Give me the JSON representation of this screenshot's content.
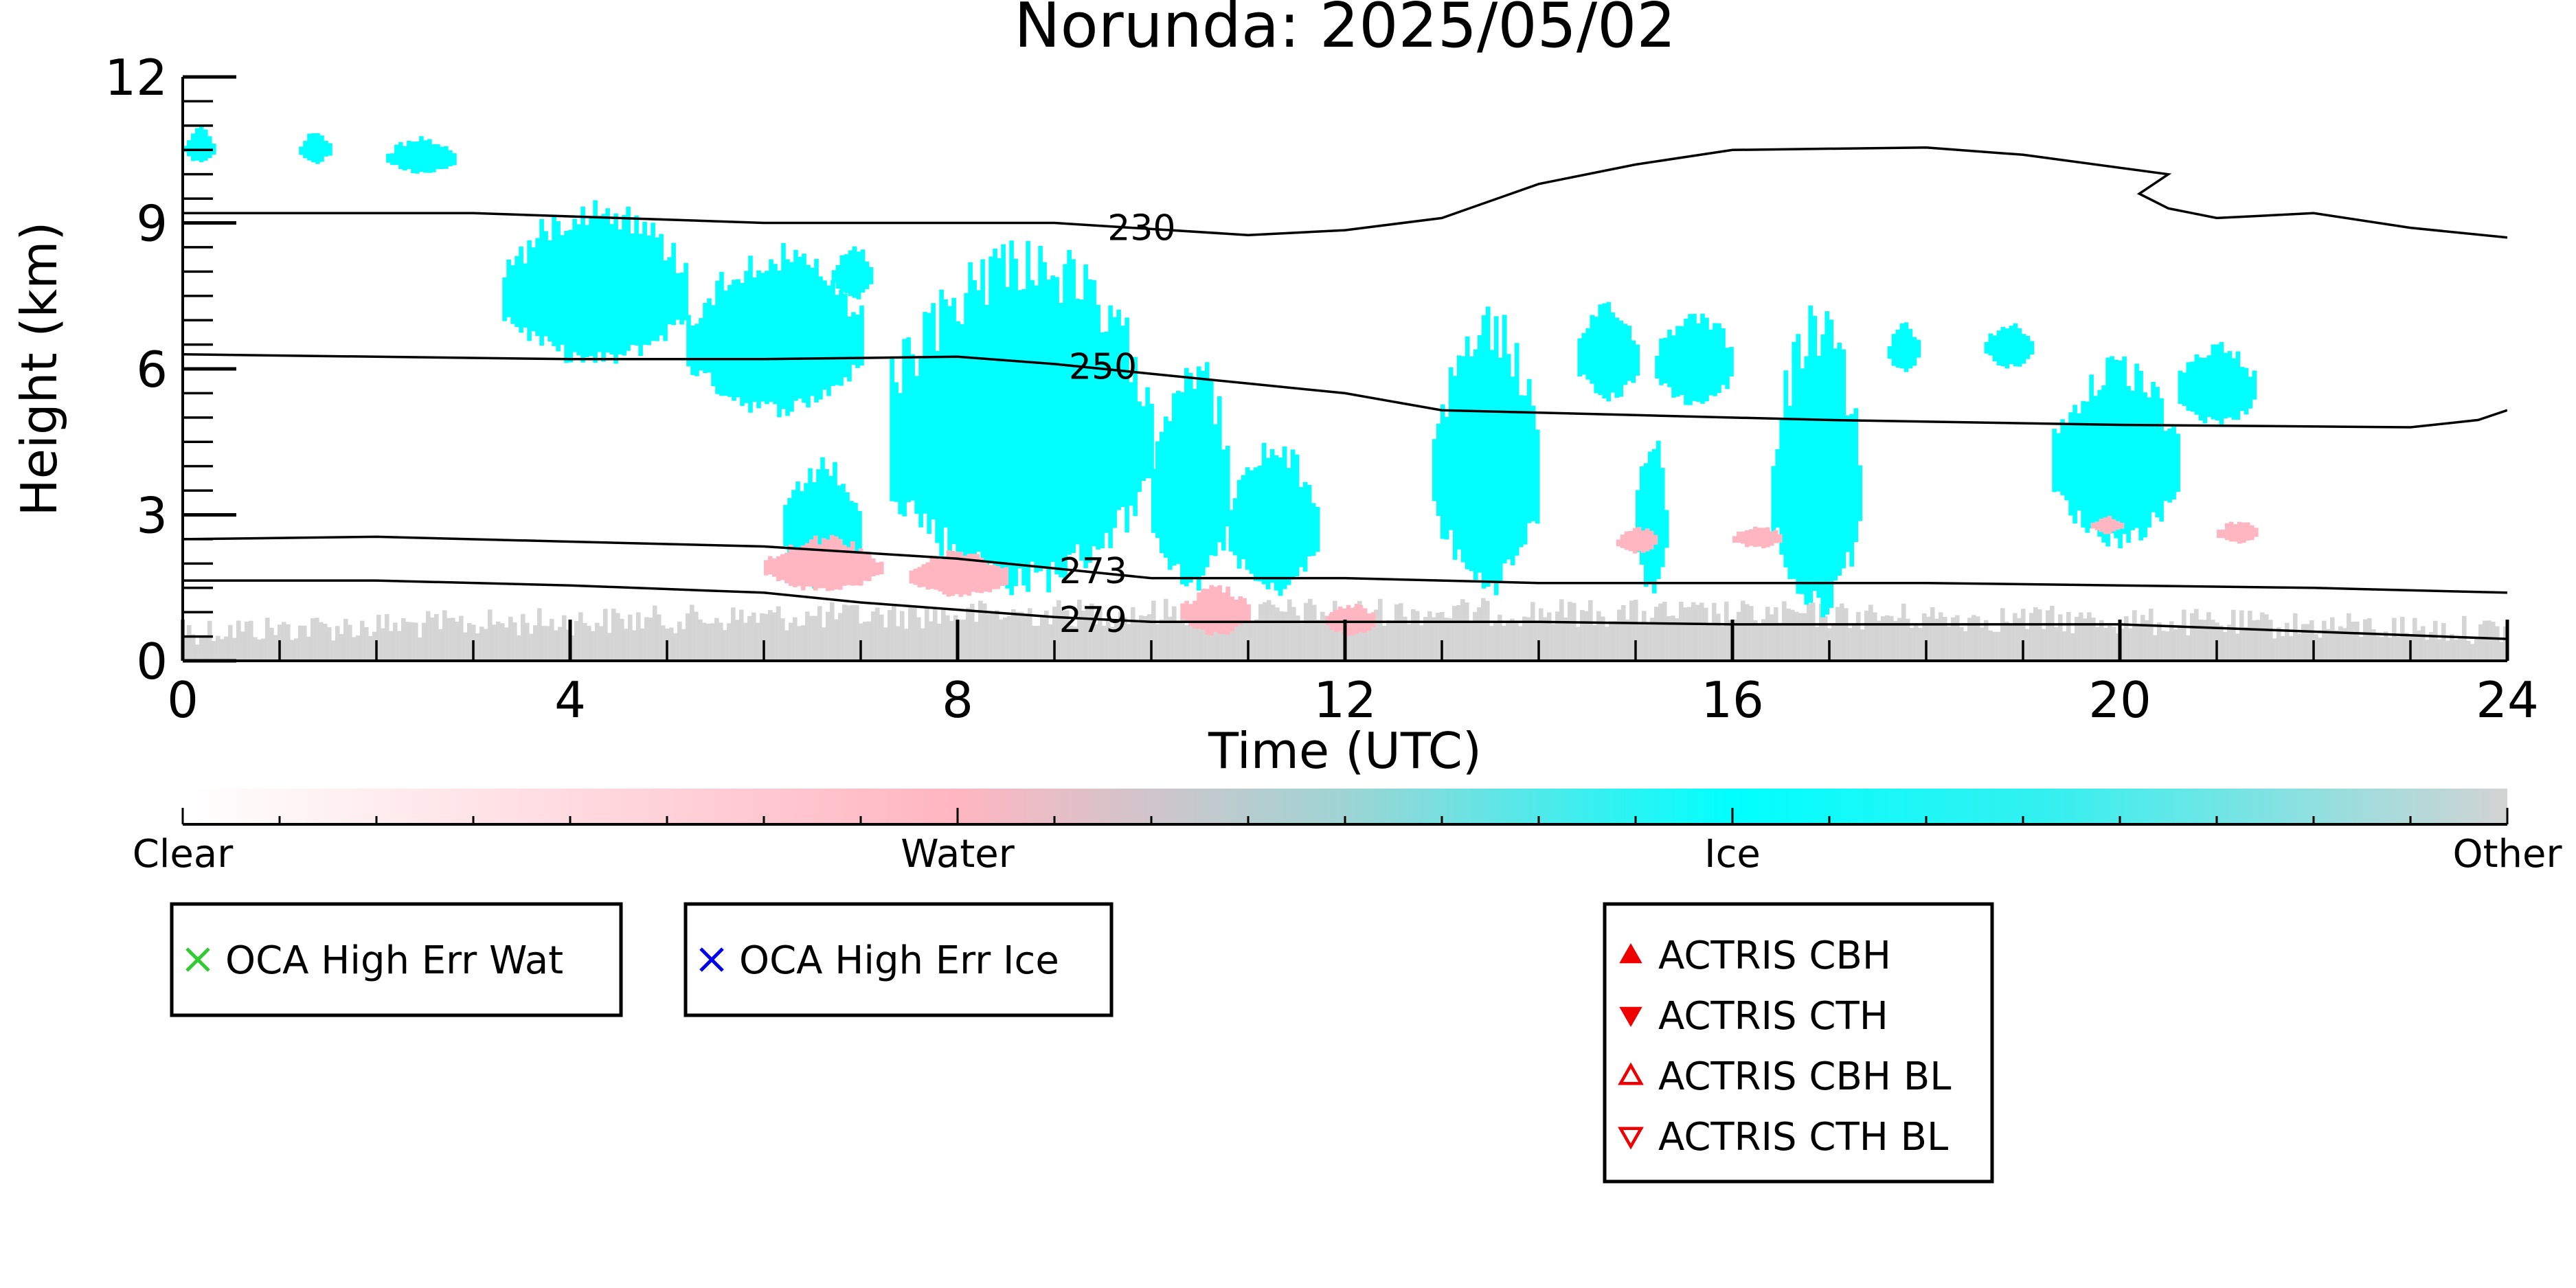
{
  "chart_data": {
    "type": "heatmap",
    "title": "Norunda: 2025/05/02",
    "xlabel": "Time (UTC)",
    "ylabel": "Height (km)",
    "xlim": [
      0,
      24
    ],
    "ylim": [
      0,
      12
    ],
    "x_ticks": [
      "0",
      "4",
      "8",
      "12",
      "16",
      "20",
      "24"
    ],
    "y_ticks": [
      "0",
      "3",
      "6",
      "9",
      "12"
    ],
    "colors": {
      "clear": "#ffffff",
      "water": "#ffb6c1",
      "ice": "#00ffff",
      "other": "#d3d3d3",
      "contour": "#000000"
    },
    "colorbar": {
      "labels": [
        "Clear",
        "Water",
        "Ice",
        "Other"
      ]
    },
    "contours": [
      {
        "label": "230",
        "label_at": [
          9.9,
          8.9
        ],
        "points": [
          [
            0,
            9.2
          ],
          [
            3,
            9.2
          ],
          [
            6,
            9.0
          ],
          [
            9,
            9.0
          ],
          [
            11,
            8.75
          ],
          [
            12,
            8.85
          ],
          [
            13,
            9.1
          ],
          [
            14,
            9.8
          ],
          [
            15,
            10.2
          ],
          [
            16,
            10.5
          ],
          [
            18,
            10.55
          ],
          [
            19,
            10.4
          ],
          [
            20.5,
            10.0
          ],
          [
            20.2,
            9.6
          ],
          [
            20.5,
            9.3
          ],
          [
            21,
            9.1
          ],
          [
            22,
            9.2
          ],
          [
            23,
            8.9
          ],
          [
            24,
            8.7
          ]
        ]
      },
      {
        "label": "250",
        "label_at": [
          9.5,
          6.05
        ],
        "points": [
          [
            0,
            6.3
          ],
          [
            4,
            6.2
          ],
          [
            6,
            6.2
          ],
          [
            8,
            6.25
          ],
          [
            9,
            6.1
          ],
          [
            10,
            5.9
          ],
          [
            11,
            5.7
          ],
          [
            12,
            5.5
          ],
          [
            13,
            5.15
          ],
          [
            15,
            5.05
          ],
          [
            17,
            4.95
          ],
          [
            20,
            4.85
          ],
          [
            23,
            4.8
          ],
          [
            23.7,
            4.95
          ],
          [
            24,
            5.15
          ]
        ]
      },
      {
        "label": "273",
        "label_at": [
          9.4,
          1.85
        ],
        "points": [
          [
            0,
            2.5
          ],
          [
            2,
            2.55
          ],
          [
            4,
            2.45
          ],
          [
            6,
            2.35
          ],
          [
            8,
            2.1
          ],
          [
            9,
            1.9
          ],
          [
            10,
            1.7
          ],
          [
            11,
            1.7
          ],
          [
            12,
            1.7
          ],
          [
            14,
            1.6
          ],
          [
            16,
            1.6
          ],
          [
            18,
            1.6
          ],
          [
            20,
            1.55
          ],
          [
            22,
            1.5
          ],
          [
            24,
            1.4
          ]
        ]
      },
      {
        "label": "279",
        "label_at": [
          9.4,
          0.85
        ],
        "points": [
          [
            0,
            1.65
          ],
          [
            2,
            1.65
          ],
          [
            4,
            1.55
          ],
          [
            6,
            1.4
          ],
          [
            7,
            1.2
          ],
          [
            8,
            1.05
          ],
          [
            9,
            0.9
          ],
          [
            10,
            0.8
          ],
          [
            12,
            0.8
          ],
          [
            14,
            0.8
          ],
          [
            16,
            0.75
          ],
          [
            18,
            0.75
          ],
          [
            20,
            0.75
          ],
          [
            22,
            0.6
          ],
          [
            24,
            0.45
          ]
        ]
      }
    ],
    "cloud_regions": [
      {
        "class": "other",
        "x0": 0,
        "x1": 24,
        "y0": 0,
        "y1": 1.3
      },
      {
        "class": "ice",
        "x0": 3.3,
        "x1": 5.2,
        "y0": 6.0,
        "y1": 9.6
      },
      {
        "class": "ice",
        "x0": 5.2,
        "x1": 7.0,
        "y0": 5.0,
        "y1": 8.6
      },
      {
        "class": "ice",
        "x0": 6.2,
        "x1": 7.0,
        "y0": 1.4,
        "y1": 4.2
      },
      {
        "class": "ice",
        "x0": 7.3,
        "x1": 10.0,
        "y0": 1.3,
        "y1": 8.9
      },
      {
        "class": "ice",
        "x0": 10.0,
        "x1": 10.8,
        "y0": 1.3,
        "y1": 6.5
      },
      {
        "class": "ice",
        "x0": 10.8,
        "x1": 11.7,
        "y0": 1.3,
        "y1": 4.6
      },
      {
        "class": "ice",
        "x0": 12.9,
        "x1": 14.0,
        "y0": 1.3,
        "y1": 7.4
      },
      {
        "class": "ice",
        "x0": 14.4,
        "x1": 15.0,
        "y0": 5.3,
        "y1": 7.4
      },
      {
        "class": "ice",
        "x0": 15.0,
        "x1": 15.3,
        "y0": 1.2,
        "y1": 5.0
      },
      {
        "class": "ice",
        "x0": 15.2,
        "x1": 16.0,
        "y0": 5.2,
        "y1": 7.3
      },
      {
        "class": "ice",
        "x0": 16.4,
        "x1": 17.3,
        "y0": 0.8,
        "y1": 7.4
      },
      {
        "class": "ice",
        "x0": 17.6,
        "x1": 17.9,
        "y0": 5.9,
        "y1": 7.0
      },
      {
        "class": "ice",
        "x0": 18.6,
        "x1": 19.1,
        "y0": 6.0,
        "y1": 7.0
      },
      {
        "class": "ice",
        "x0": 19.3,
        "x1": 20.6,
        "y0": 2.3,
        "y1": 6.3
      },
      {
        "class": "ice",
        "x0": 20.6,
        "x1": 21.4,
        "y0": 4.8,
        "y1": 6.6
      },
      {
        "class": "ice",
        "x0": 0,
        "x1": 0.3,
        "y0": 10.2,
        "y1": 11.0
      },
      {
        "class": "ice",
        "x0": 1.2,
        "x1": 1.5,
        "y0": 10.2,
        "y1": 10.9
      },
      {
        "class": "ice",
        "x0": 2.1,
        "x1": 2.8,
        "y0": 10.0,
        "y1": 10.8
      },
      {
        "class": "ice",
        "x0": 6.7,
        "x1": 7.1,
        "y0": 7.4,
        "y1": 8.6
      },
      {
        "class": "water",
        "x0": 6.0,
        "x1": 7.2,
        "y0": 1.4,
        "y1": 2.6
      },
      {
        "class": "water",
        "x0": 7.5,
        "x1": 8.5,
        "y0": 1.3,
        "y1": 2.3
      },
      {
        "class": "water",
        "x0": 10.3,
        "x1": 11.0,
        "y0": 0.5,
        "y1": 1.6
      },
      {
        "class": "water",
        "x0": 11.8,
        "x1": 12.3,
        "y0": 0.5,
        "y1": 1.2
      },
      {
        "class": "water",
        "x0": 14.8,
        "x1": 15.2,
        "y0": 2.2,
        "y1": 2.8
      },
      {
        "class": "water",
        "x0": 16.0,
        "x1": 16.5,
        "y0": 2.3,
        "y1": 2.8
      },
      {
        "class": "water",
        "x0": 19.7,
        "x1": 20.0,
        "y0": 2.6,
        "y1": 3.0
      },
      {
        "class": "water",
        "x0": 21.0,
        "x1": 21.4,
        "y0": 2.4,
        "y1": 2.9
      }
    ],
    "legends": [
      {
        "entries": [
          {
            "label": "OCA High Err Wat",
            "marker": "x",
            "color": "#2ecc2e"
          }
        ]
      },
      {
        "entries": [
          {
            "label": "OCA High Err Ice",
            "marker": "x",
            "color": "#0000ee"
          }
        ]
      },
      {
        "entries": [
          {
            "label": "ACTRIS CBH",
            "marker": "triangle-up-filled",
            "color": "#ee0000"
          },
          {
            "label": "ACTRIS CTH",
            "marker": "triangle-down-filled",
            "color": "#ee0000"
          },
          {
            "label": "ACTRIS CBH BL",
            "marker": "triangle-up-open",
            "color": "#ee0000"
          },
          {
            "label": "ACTRIS CTH BL",
            "marker": "triangle-down-open",
            "color": "#ee0000"
          }
        ]
      }
    ]
  }
}
